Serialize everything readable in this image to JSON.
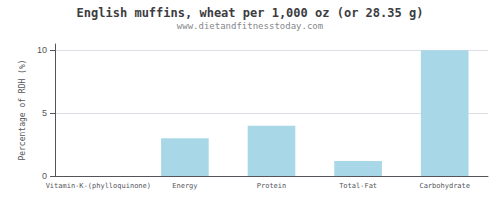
{
  "chart_data": {
    "type": "bar",
    "title": "English muffins, wheat per 1,000 oz (or 28.35 g)",
    "subtitle": "www.dietandfitnesstoday.com",
    "categories": [
      "Vitamin-K-(phylloquinone)",
      "Energy",
      "Protein",
      "Total-Fat",
      "Carbohydrate"
    ],
    "values": [
      0,
      3.0,
      4.0,
      1.2,
      10.0
    ],
    "color": "#a8d8e8",
    "ylabel": "Percentage of RDH (%)",
    "ylim": [
      0,
      10.5
    ],
    "yticks": [
      0,
      5,
      10
    ],
    "grid": true
  }
}
